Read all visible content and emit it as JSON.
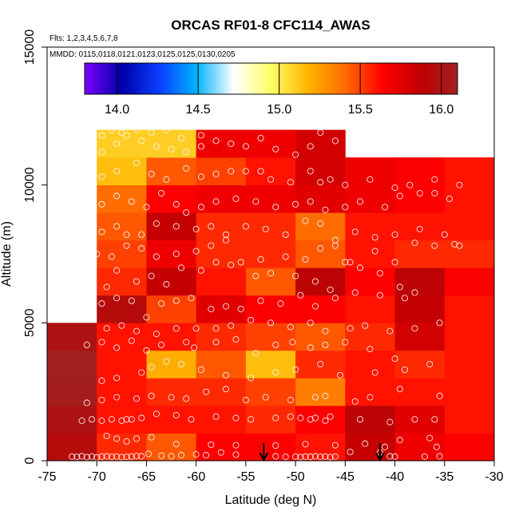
{
  "chart_data": {
    "type": "heatmap",
    "title": "ORCAS RF01-8 CFC114_AWAS",
    "subtitle_flights": "Flts: 1,2,3,4,5,6,7,8",
    "subtitle_dates": "MMDD: 0115,0118,0121,0123,0125,0125,0130,0205",
    "xlabel": "Latitude (deg N)",
    "ylabel": "Altitude (m)",
    "xlim": [
      -75,
      -30
    ],
    "ylim": [
      0,
      15000
    ],
    "xticks": [
      -75,
      -70,
      -65,
      -60,
      -55,
      -50,
      -45,
      -40,
      -35,
      -30
    ],
    "xtick_labels": [
      "-75",
      "-70",
      "-65",
      "-60",
      "-55",
      "-50",
      "-45",
      "-40",
      "-35",
      "-30"
    ],
    "yticks": [
      0,
      5000,
      10000,
      15000
    ],
    "ytick_labels": [
      "0",
      "5000",
      "10000",
      "15000"
    ],
    "bin_width_deg": 5,
    "bin_height_m": 1000,
    "colorbar": {
      "min": 13.8,
      "max": 16.1,
      "ticks": [
        14.0,
        14.5,
        15.0,
        15.5,
        16.0
      ],
      "tick_labels": [
        "14.0",
        "14.5",
        "15.0",
        "15.5",
        "16.0"
      ],
      "palette": [
        "#7b00ff",
        "#0000a8",
        "#0a3dff",
        "#00b2ff",
        "#ffffff",
        "#ffff66",
        "#ffb300",
        "#ff6a00",
        "#ff0000",
        "#c00000",
        "#a02020"
      ]
    },
    "columns": [
      {
        "lat_start": -75,
        "alt_start": 0,
        "values": [
          15.95,
          16.0,
          16.08,
          16.1,
          16.0
        ]
      },
      {
        "lat_start": -70,
        "alt_start": 0,
        "values": [
          15.55,
          15.6,
          15.6,
          15.6,
          15.6,
          15.95,
          15.55,
          15.5,
          15.45,
          15.4,
          15.15,
          15.1
        ]
      },
      {
        "lat_start": -65,
        "alt_start": 0,
        "values": [
          15.45,
          15.6,
          15.55,
          15.2,
          15.6,
          15.5,
          15.85,
          15.7,
          15.85,
          15.65,
          15.45,
          15.1
        ]
      },
      {
        "lat_start": -60,
        "alt_start": 0,
        "values": [
          15.65,
          15.6,
          15.55,
          15.45,
          15.55,
          15.75,
          15.6,
          15.55,
          15.55,
          15.7,
          15.5,
          15.7
        ]
      },
      {
        "lat_start": -55,
        "alt_start": 0,
        "values": [
          15.65,
          15.55,
          15.5,
          15.15,
          15.5,
          15.65,
          15.45,
          15.55,
          15.55,
          15.7,
          15.6,
          15.7
        ]
      },
      {
        "lat_start": -50,
        "alt_start": 0,
        "values": [
          15.6,
          15.65,
          15.35,
          15.55,
          15.45,
          15.65,
          15.9,
          15.45,
          15.4,
          15.75,
          15.8,
          15.8
        ]
      },
      {
        "lat_start": -45,
        "alt_start": 0,
        "values": [
          15.85,
          15.9,
          15.6,
          15.6,
          15.55,
          15.6,
          15.65,
          15.6,
          15.6,
          15.7,
          15.7
        ]
      },
      {
        "lat_start": -40,
        "alt_start": 0,
        "values": [
          15.7,
          15.75,
          15.6,
          15.55,
          15.8,
          15.85,
          15.9,
          15.55,
          15.6,
          15.65,
          15.65
        ]
      },
      {
        "lat_start": -35,
        "alt_start": 0,
        "values": [
          15.65,
          15.6,
          15.6,
          15.6,
          15.6,
          15.6,
          15.65,
          15.55,
          15.6,
          15.6,
          15.6
        ]
      }
    ],
    "samples": [
      [
        -72.5,
        150
      ],
      [
        -72,
        140
      ],
      [
        -71.5,
        160
      ],
      [
        -71,
        130
      ],
      [
        -70.5,
        150
      ],
      [
        -70,
        120
      ],
      [
        -69.5,
        150
      ],
      [
        -69,
        160
      ],
      [
        -68.5,
        140
      ],
      [
        -68,
        150
      ],
      [
        -67.5,
        130
      ],
      [
        -67,
        140
      ],
      [
        -66.5,
        150
      ],
      [
        -66,
        170
      ],
      [
        -65.5,
        160
      ],
      [
        -64.8,
        250
      ],
      [
        -63.5,
        180
      ],
      [
        -62.5,
        160
      ],
      [
        -61.5,
        200
      ],
      [
        -60,
        230
      ],
      [
        -59,
        200
      ],
      [
        -57.5,
        300
      ],
      [
        -56,
        220
      ],
      [
        -52,
        160
      ],
      [
        -51,
        140
      ],
      [
        -50,
        150
      ],
      [
        -49.5,
        130
      ],
      [
        -49,
        150
      ],
      [
        -48.5,
        140
      ],
      [
        -48,
        160
      ],
      [
        -47.5,
        140
      ],
      [
        -47,
        150
      ],
      [
        -46.5,
        130
      ],
      [
        -46,
        150
      ],
      [
        -44.5,
        320
      ],
      [
        -41.5,
        300
      ],
      [
        -40.5,
        160
      ],
      [
        -40,
        150
      ],
      [
        -37,
        150
      ],
      [
        -35.5,
        160
      ],
      [
        -69,
        900
      ],
      [
        -68,
        800
      ],
      [
        -67,
        700
      ],
      [
        -66,
        800
      ],
      [
        -64.5,
        850
      ],
      [
        -62,
        600
      ],
      [
        -58.5,
        580
      ],
      [
        -56,
        560
      ],
      [
        -52,
        550
      ],
      [
        -49,
        600
      ],
      [
        -46,
        560
      ],
      [
        -43,
        620
      ],
      [
        -41,
        500
      ],
      [
        -39.5,
        750
      ],
      [
        -36.5,
        820
      ],
      [
        -35.8,
        500
      ],
      [
        -71.5,
        1450
      ],
      [
        -70.5,
        1500
      ],
      [
        -69.5,
        1450
      ],
      [
        -68.5,
        1500
      ],
      [
        -67.5,
        1450
      ],
      [
        -67,
        1500
      ],
      [
        -66.5,
        1500
      ],
      [
        -65.5,
        1550
      ],
      [
        -64,
        1700
      ],
      [
        -62,
        1650
      ],
      [
        -60.5,
        1500
      ],
      [
        -58,
        1600
      ],
      [
        -56,
        1550
      ],
      [
        -54.5,
        1500
      ],
      [
        -52,
        1550
      ],
      [
        -50.5,
        1600
      ],
      [
        -49.5,
        1550
      ],
      [
        -48.5,
        1500
      ],
      [
        -48,
        1550
      ],
      [
        -47,
        1450
      ],
      [
        -46.5,
        1600
      ],
      [
        -43.5,
        1500
      ],
      [
        -40.5,
        1400
      ],
      [
        -38,
        1500
      ],
      [
        -36,
        1500
      ],
      [
        -71,
        2100
      ],
      [
        -69.5,
        2200
      ],
      [
        -68,
        2300
      ],
      [
        -66,
        2250
      ],
      [
        -64.5,
        2350
      ],
      [
        -62.5,
        2300
      ],
      [
        -61,
        2250
      ],
      [
        -59,
        2500
      ],
      [
        -57,
        2600
      ],
      [
        -55,
        2200
      ],
      [
        -53,
        2300
      ],
      [
        -50.5,
        2200
      ],
      [
        -48,
        2300
      ],
      [
        -47,
        2350
      ],
      [
        -44,
        2150
      ],
      [
        -42.5,
        2300
      ],
      [
        -39.5,
        2600
      ],
      [
        -35.5,
        2350
      ],
      [
        -69.5,
        2900
      ],
      [
        -68,
        3000
      ],
      [
        -65.5,
        3200
      ],
      [
        -64.5,
        3400
      ],
      [
        -63,
        3600
      ],
      [
        -61.5,
        3500
      ],
      [
        -59.5,
        3300
      ],
      [
        -57,
        3100
      ],
      [
        -54.5,
        3000
      ],
      [
        -52,
        3200
      ],
      [
        -50,
        3300
      ],
      [
        -47.5,
        3500
      ],
      [
        -45.5,
        3100
      ],
      [
        -42,
        3200
      ],
      [
        -39,
        3300
      ],
      [
        -36.5,
        3500
      ],
      [
        -71,
        4200
      ],
      [
        -69.5,
        4300
      ],
      [
        -68,
        4100
      ],
      [
        -66.5,
        4350
      ],
      [
        -65,
        4000
      ],
      [
        -63.5,
        4200
      ],
      [
        -61,
        4300
      ],
      [
        -60.2,
        4100
      ],
      [
        -58,
        4300
      ],
      [
        -56,
        4400
      ],
      [
        -54,
        3900
      ],
      [
        -52,
        4200
      ],
      [
        -50.3,
        4300
      ],
      [
        -48.5,
        4100
      ],
      [
        -47,
        4200
      ],
      [
        -45,
        4300
      ],
      [
        -42.5,
        4050
      ],
      [
        -40,
        3700
      ],
      [
        -69,
        4800
      ],
      [
        -67.5,
        4900
      ],
      [
        -66,
        4700
      ],
      [
        -64,
        4600
      ],
      [
        -62,
        4800
      ],
      [
        -60,
        4800
      ],
      [
        -58,
        4800
      ],
      [
        -56.5,
        4900
      ],
      [
        -54.5,
        5100
      ],
      [
        -52.5,
        5000
      ],
      [
        -50.5,
        4850
      ],
      [
        -48.5,
        5000
      ],
      [
        -47,
        4700
      ],
      [
        -44.5,
        4800
      ],
      [
        -43,
        4900
      ],
      [
        -40.5,
        4700
      ],
      [
        -38,
        4800
      ],
      [
        -35.5,
        5000
      ],
      [
        -69.5,
        5700
      ],
      [
        -68,
        5900
      ],
      [
        -66.5,
        5800
      ],
      [
        -65,
        5200
      ],
      [
        -63.5,
        5700
      ],
      [
        -62,
        5800
      ],
      [
        -60.5,
        5900
      ],
      [
        -58.5,
        5500
      ],
      [
        -57,
        5600
      ],
      [
        -55.5,
        5500
      ],
      [
        -53.5,
        5800
      ],
      [
        -51.5,
        5700
      ],
      [
        -49.5,
        6000
      ],
      [
        -48,
        5600
      ],
      [
        -46,
        5900
      ],
      [
        -44,
        6100
      ],
      [
        -41.5,
        6000
      ],
      [
        -39,
        5900
      ],
      [
        -38,
        6100
      ],
      [
        -69,
        6300
      ],
      [
        -68,
        6900
      ],
      [
        -66,
        6500
      ],
      [
        -64.5,
        6700
      ],
      [
        -63,
        6400
      ],
      [
        -61.5,
        7000
      ],
      [
        -59.5,
        6900
      ],
      [
        -58,
        7200
      ],
      [
        -56.5,
        7100
      ],
      [
        -54,
        6700
      ],
      [
        -52.5,
        6800
      ],
      [
        -50,
        6700
      ],
      [
        -48,
        6500
      ],
      [
        -46.5,
        6200
      ],
      [
        -45,
        7200
      ],
      [
        -43.5,
        7000
      ],
      [
        -41.5,
        6800
      ],
      [
        -39.5,
        6300
      ],
      [
        -70,
        7500
      ],
      [
        -68.5,
        7400
      ],
      [
        -67,
        7800
      ],
      [
        -65.5,
        7700
      ],
      [
        -64,
        7400
      ],
      [
        -62,
        7500
      ],
      [
        -60,
        7600
      ],
      [
        -58.5,
        7800
      ],
      [
        -57,
        8000
      ],
      [
        -55.5,
        7200
      ],
      [
        -53.5,
        7300
      ],
      [
        -51,
        7400
      ],
      [
        -49,
        7300
      ],
      [
        -47.5,
        7700
      ],
      [
        -46,
        7800
      ],
      [
        -44.5,
        7200
      ],
      [
        -42,
        7600
      ],
      [
        -40,
        7200
      ],
      [
        -38,
        7900
      ],
      [
        -36,
        7800
      ],
      [
        -34,
        7850
      ],
      [
        -33.5,
        7800
      ],
      [
        -69.5,
        8300
      ],
      [
        -68,
        8500
      ],
      [
        -67,
        8200
      ],
      [
        -65.5,
        8200
      ],
      [
        -64,
        8600
      ],
      [
        -62,
        8500
      ],
      [
        -60,
        8400
      ],
      [
        -58.5,
        8500
      ],
      [
        -57,
        8200
      ],
      [
        -55,
        8500
      ],
      [
        -53,
        8400
      ],
      [
        -51,
        8200
      ],
      [
        -49,
        8700
      ],
      [
        -47.5,
        8600
      ],
      [
        -46,
        8000
      ],
      [
        -44,
        8300
      ],
      [
        -42,
        8100
      ],
      [
        -40,
        8200
      ],
      [
        -37.5,
        8400
      ],
      [
        -35,
        8200
      ],
      [
        -69.5,
        9300
      ],
      [
        -68,
        9600
      ],
      [
        -66.5,
        9400
      ],
      [
        -65,
        9200
      ],
      [
        -63.5,
        9700
      ],
      [
        -62,
        9300
      ],
      [
        -61,
        9000
      ],
      [
        -59.5,
        9200
      ],
      [
        -58,
        9400
      ],
      [
        -56,
        9500
      ],
      [
        -54,
        9400
      ],
      [
        -52,
        9200
      ],
      [
        -50,
        9300
      ],
      [
        -48.5,
        9400
      ],
      [
        -47,
        9100
      ],
      [
        -45,
        9200
      ],
      [
        -43.5,
        9400
      ],
      [
        -41,
        9200
      ],
      [
        -39.5,
        9600
      ],
      [
        -37.5,
        9700
      ],
      [
        -36,
        9700
      ],
      [
        -34.5,
        9500
      ],
      [
        -69.5,
        10300
      ],
      [
        -68,
        10500
      ],
      [
        -66,
        10800
      ],
      [
        -64.5,
        10400
      ],
      [
        -63,
        10200
      ],
      [
        -61,
        10600
      ],
      [
        -59.5,
        10300
      ],
      [
        -58,
        10400
      ],
      [
        -56.5,
        10500
      ],
      [
        -55,
        10500
      ],
      [
        -53.5,
        10500
      ],
      [
        -52.5,
        10200
      ],
      [
        -50.5,
        10100
      ],
      [
        -48.5,
        10500
      ],
      [
        -47.5,
        10100
      ],
      [
        -46.5,
        10200
      ],
      [
        -45,
        10000
      ],
      [
        -42.5,
        10200
      ],
      [
        -40,
        9900
      ],
      [
        -38.5,
        10000
      ],
      [
        -36,
        10200
      ],
      [
        -33.5,
        10000
      ],
      [
        -69.5,
        11200
      ],
      [
        -68,
        11500
      ],
      [
        -67,
        11800
      ],
      [
        -65.5,
        11600
      ],
      [
        -64,
        11400
      ],
      [
        -62.5,
        11300
      ],
      [
        -61,
        11200
      ],
      [
        -59.5,
        11400
      ],
      [
        -58,
        11600
      ],
      [
        -56.5,
        11500
      ],
      [
        -55,
        11400
      ],
      [
        -53.5,
        11700
      ],
      [
        -52,
        11300
      ],
      [
        -50,
        11100
      ],
      [
        -48.5,
        11400
      ],
      [
        -47.5,
        11900
      ],
      [
        -46,
        11600
      ],
      [
        -69.5,
        11800
      ],
      [
        -68.5,
        12000
      ],
      [
        -67.5,
        11900
      ],
      [
        -66,
        12000
      ],
      [
        -64.5,
        11900
      ],
      [
        -63,
        12000
      ],
      [
        -61.5,
        11700
      ],
      [
        -59.5,
        11800
      ]
    ],
    "markers": [
      {
        "label": "arrow",
        "lat": -53.2
      },
      {
        "label": "arrow",
        "lat": -41.5
      }
    ]
  }
}
